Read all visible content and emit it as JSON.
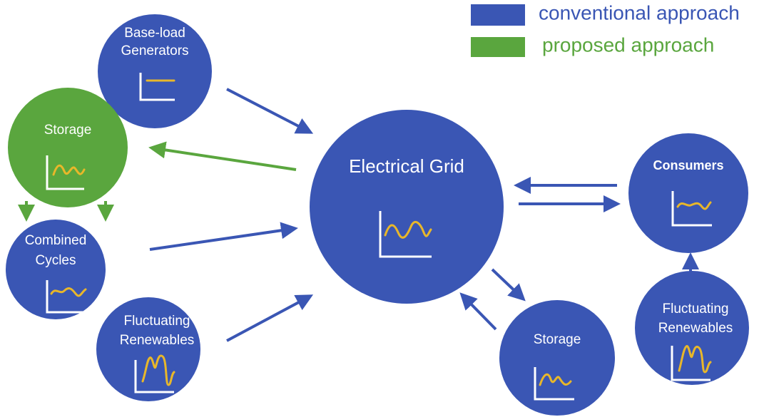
{
  "legend": {
    "items": [
      {
        "label": "conventional approach",
        "color": "#3a56b4"
      },
      {
        "label": "proposed approach",
        "color": "#5aa63e"
      }
    ]
  },
  "nodes": [
    {
      "label": [
        "Base-load",
        "Generators"
      ]
    },
    {
      "label": [
        "Storage"
      ]
    },
    {
      "label": [
        "Combined",
        "Cycles"
      ]
    },
    {
      "label": [
        "Fluctuating",
        "Renewables"
      ]
    },
    {
      "label": [
        "Electrical Grid"
      ]
    },
    {
      "label": [
        "Consumers"
      ]
    },
    {
      "label": [
        "Fluctuating",
        "Renewables"
      ]
    },
    {
      "label": [
        "Storage"
      ]
    }
  ]
}
